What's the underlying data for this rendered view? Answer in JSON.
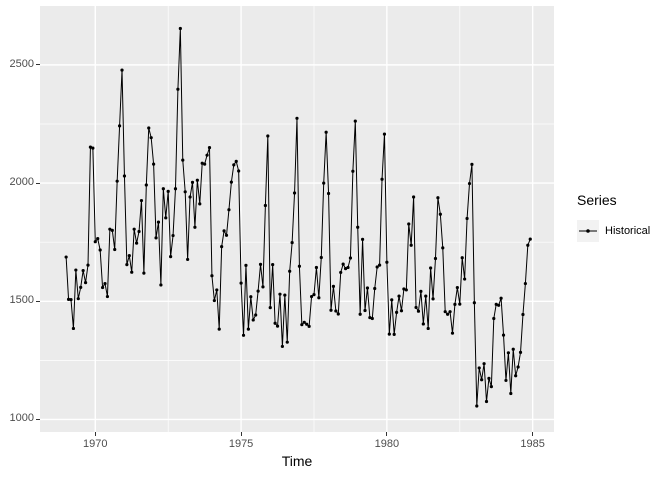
{
  "chart_data": {
    "type": "line",
    "title": "",
    "xlabel": "Time",
    "ylabel": "",
    "x_start": 1969.0,
    "x_step_years": 0.08333333,
    "series": [
      {
        "name": "Historical",
        "color": "#000000",
        "marker": "point",
        "values": [
          1687,
          1508,
          1507,
          1385,
          1632,
          1511,
          1559,
          1630,
          1579,
          1653,
          2152,
          2148,
          1752,
          1765,
          1717,
          1558,
          1575,
          1520,
          1805,
          1800,
          1719,
          2008,
          2242,
          2478,
          2030,
          1655,
          1693,
          1623,
          1805,
          1746,
          1795,
          1926,
          1619,
          1992,
          2233,
          2192,
          2080,
          1768,
          1835,
          1569,
          1976,
          1853,
          1965,
          1689,
          1778,
          1976,
          2397,
          2654,
          2097,
          1963,
          1677,
          1941,
          2003,
          1813,
          2012,
          1912,
          2084,
          2080,
          2118,
          2150,
          1608,
          1503,
          1548,
          1382,
          1731,
          1798,
          1779,
          1887,
          2004,
          2077,
          2092,
          2051,
          1577,
          1356,
          1652,
          1382,
          1519,
          1421,
          1442,
          1543,
          1656,
          1561,
          1905,
          2199,
          1473,
          1655,
          1407,
          1395,
          1530,
          1309,
          1526,
          1327,
          1627,
          1748,
          1958,
          2274,
          1648,
          1401,
          1411,
          1403,
          1394,
          1520,
          1528,
          1643,
          1515,
          1685,
          2000,
          2215,
          1956,
          1462,
          1563,
          1459,
          1446,
          1622,
          1657,
          1638,
          1643,
          1683,
          2050,
          2262,
          1813,
          1445,
          1762,
          1461,
          1556,
          1431,
          1427,
          1554,
          1645,
          1653,
          2016,
          2207,
          1665,
          1361,
          1506,
          1360,
          1453,
          1522,
          1460,
          1552,
          1548,
          1827,
          1737,
          1941,
          1474,
          1458,
          1542,
          1404,
          1522,
          1385,
          1641,
          1510,
          1681,
          1938,
          1868,
          1726,
          1456,
          1445,
          1456,
          1365,
          1487,
          1558,
          1488,
          1684,
          1594,
          1850,
          1998,
          2079,
          1494,
          1057,
          1218,
          1168,
          1236,
          1076,
          1174,
          1139,
          1427,
          1487,
          1483,
          1513,
          1357,
          1165,
          1282,
          1110,
          1297,
          1185,
          1222,
          1284,
          1444,
          1575,
          1737,
          1763
        ]
      }
    ],
    "x_axis": {
      "major_ticks": [
        1970,
        1975,
        1980,
        1985
      ],
      "major_tick_labels": [
        "1970",
        "1975",
        "1980",
        "1985"
      ],
      "minor_gridlines": [
        1972.5,
        1977.5,
        1982.5
      ],
      "range": [
        1968.104,
        1985.731
      ]
    },
    "y_axis": {
      "major_ticks": [
        1000,
        1500,
        2000,
        2500
      ],
      "major_tick_labels": [
        "1000",
        "1500",
        "2000",
        "2500"
      ],
      "minor_gridlines": [
        1250,
        1750,
        2250
      ],
      "range": [
        947,
        2749
      ]
    },
    "grid": "on",
    "legend_position": "right"
  },
  "legend": {
    "title": "Series",
    "items": [
      {
        "label": "Historical",
        "key": "point-line-icon"
      }
    ]
  },
  "style": {
    "panel_bg": "#EBEBEB",
    "grid_major_color": "#FFFFFF",
    "grid_minor_color": "#FFFFFF",
    "axis_text_color": "#4D4D4D",
    "tick_color": "#333333",
    "series_color": "#000000",
    "legend_key_bg": "#F2F2F2",
    "page_bg": "#FFFFFF"
  }
}
